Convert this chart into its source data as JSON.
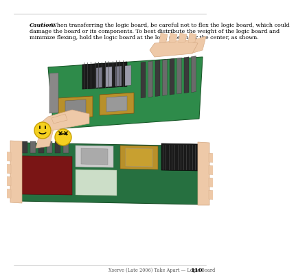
{
  "bg_color": "#ffffff",
  "line_color": "#aaaaaa",
  "caution_label": "Caution:",
  "caution_rest": " When transferring the logic board, be careful not to flex the logic board, which could damage the board or its components. To best distribute the weight of the logic board and minimize flexing, hold the logic board at the long sides near the center, as shown.",
  "footer_text": "Xserve (Late 2006) Take Apart — Logic Board",
  "footer_page": "110",
  "hand_color": "#eec9a8",
  "hand_edge": "#d4a882",
  "board1_green": "#2e8b4a",
  "board2_green": "#267040",
  "heatsink_color": "#1a1a1a",
  "cpu_color": "#b8902a",
  "slot_dark": "#3a3a3a",
  "slot_light": "#6a6a6a",
  "smiley_fill": "#f5d020",
  "smiley_edge": "#c8a000",
  "caution_fontsize": 5.8,
  "footer_fontsize": 4.8,
  "page_num_fontsize": 6.0
}
